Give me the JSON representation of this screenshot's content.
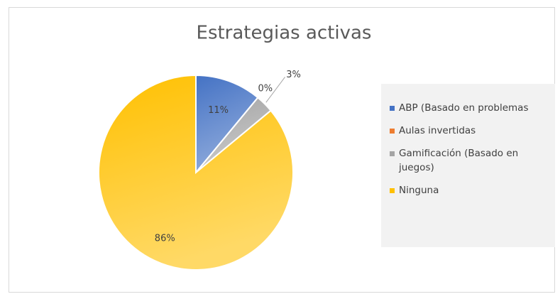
{
  "chart_data": {
    "type": "pie",
    "title": "Estrategias activas",
    "categories": [
      "ABP (Basado en problemas",
      "Aulas invertidas",
      "Gamificación (Basado en juegos)",
      "Ninguna"
    ],
    "values": [
      11,
      0,
      3,
      86
    ],
    "value_labels": [
      "11%",
      "0%",
      "3%",
      "86%"
    ],
    "colors": [
      "#4472c4",
      "#ed7d31",
      "#a5a5a5",
      "#ffc000"
    ],
    "legend": "right"
  }
}
